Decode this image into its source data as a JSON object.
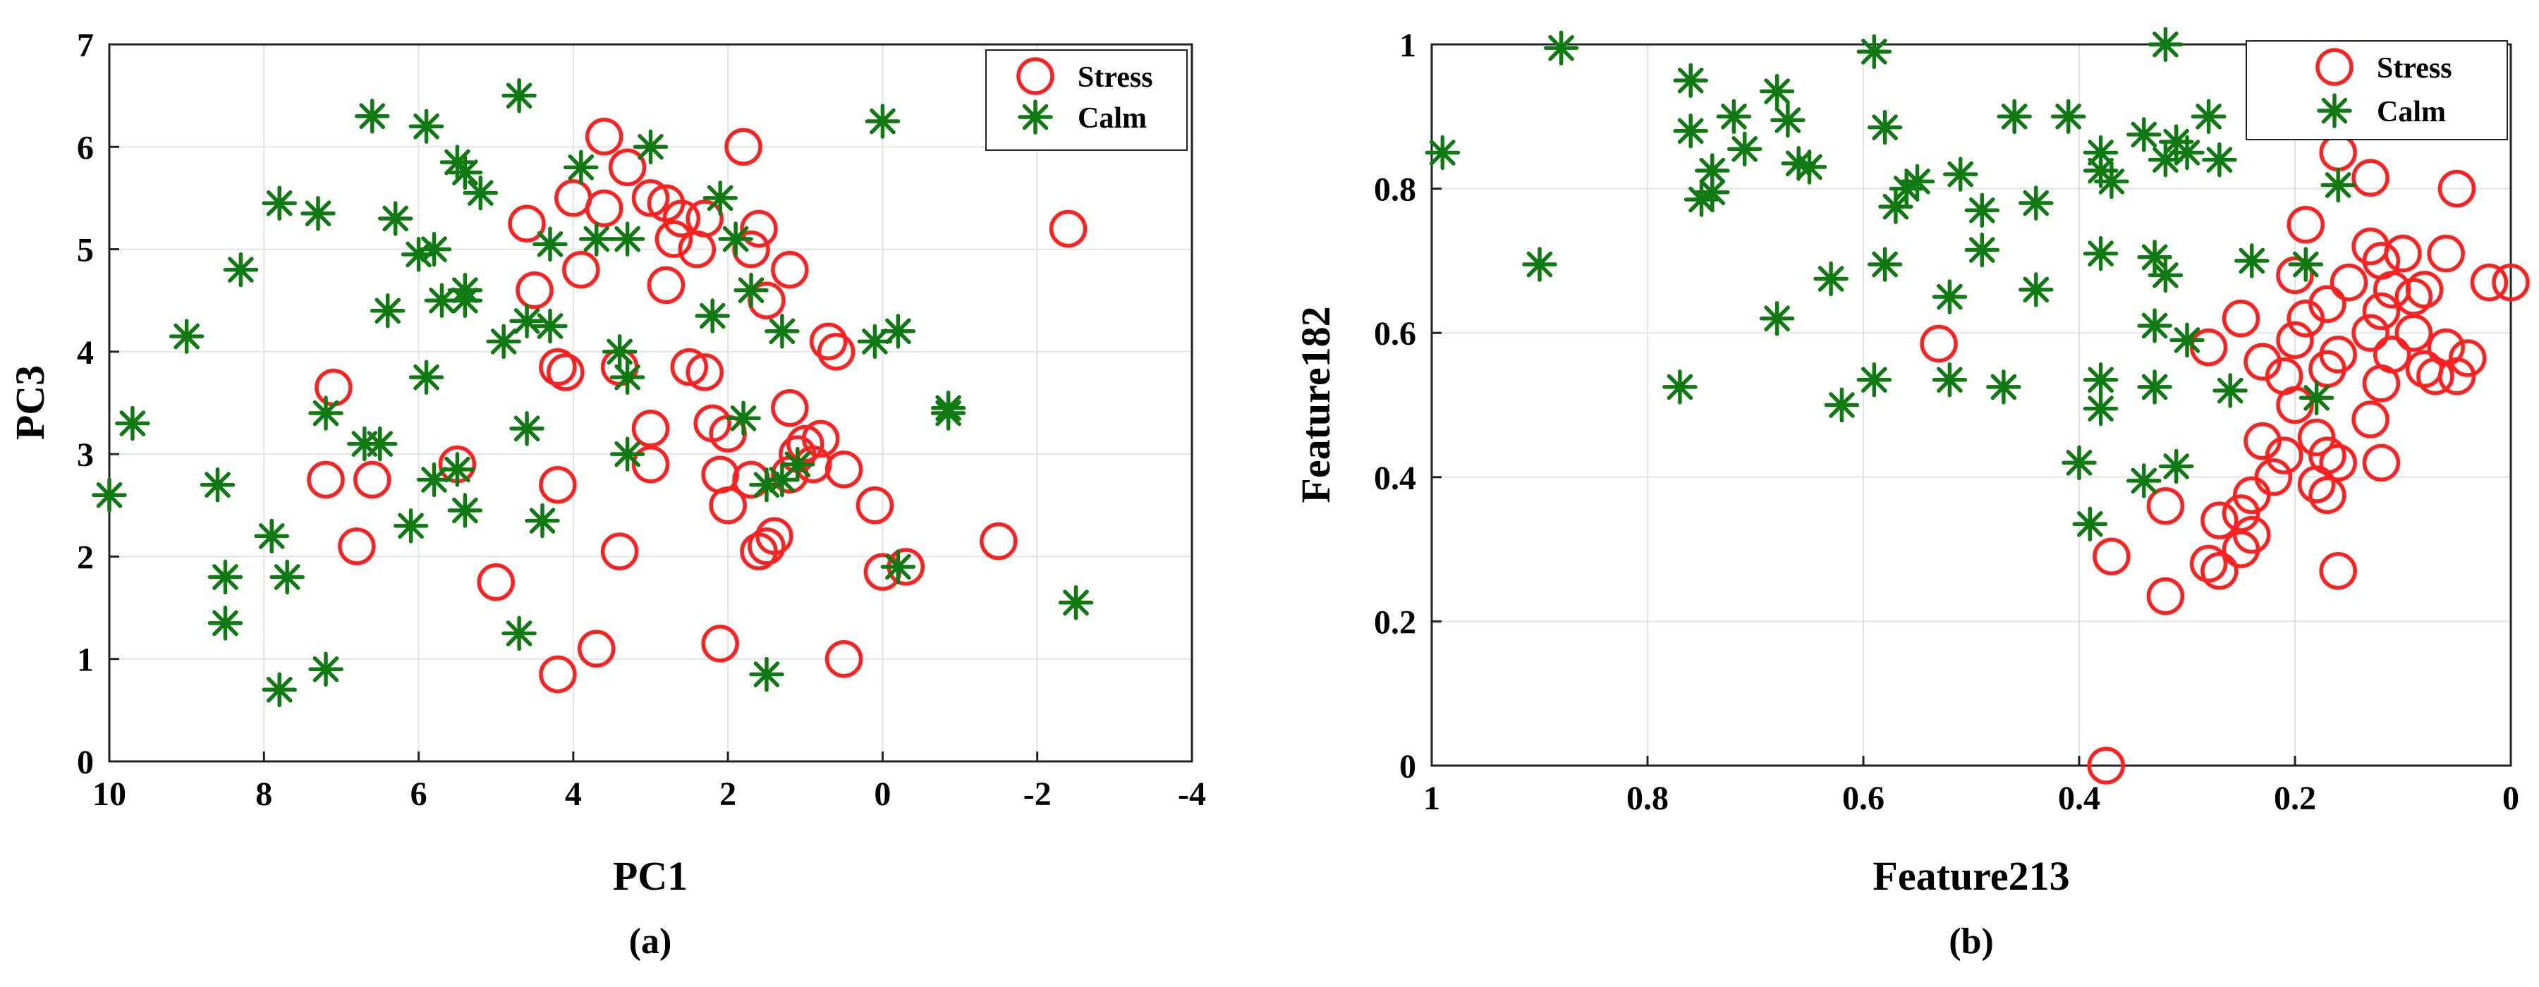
{
  "colors": {
    "stress": "#ff2020",
    "calm": "#0f7a12"
  },
  "chart_data": [
    {
      "type": "scatter",
      "caption": "(a)",
      "xlabel": "PC1",
      "ylabel": "PC3",
      "xlim": [
        10,
        -4
      ],
      "ylim": [
        0,
        7
      ],
      "xticks": [
        10,
        8,
        6,
        4,
        2,
        0,
        -2,
        -4
      ],
      "yticks": [
        0,
        1,
        2,
        3,
        4,
        5,
        6,
        7
      ],
      "grid": true,
      "legend": {
        "position": "top-right",
        "entries": [
          "Stress",
          "Calm"
        ]
      },
      "series": [
        {
          "name": "Stress",
          "marker": "circle",
          "points": [
            [
              3.6,
              6.1
            ],
            [
              1.8,
              6.0
            ],
            [
              3.3,
              5.8
            ],
            [
              3.0,
              5.5
            ],
            [
              2.8,
              5.45
            ],
            [
              3.6,
              5.4
            ],
            [
              4.0,
              5.5
            ],
            [
              2.6,
              5.3
            ],
            [
              4.6,
              5.25
            ],
            [
              2.3,
              5.3
            ],
            [
              1.6,
              5.2
            ],
            [
              2.4,
              5.0
            ],
            [
              2.7,
              5.1
            ],
            [
              1.7,
              5.0
            ],
            [
              1.2,
              4.8
            ],
            [
              3.9,
              4.8
            ],
            [
              1.5,
              4.5
            ],
            [
              4.5,
              4.6
            ],
            [
              2.8,
              4.65
            ],
            [
              0.7,
              4.1
            ],
            [
              0.6,
              4.0
            ],
            [
              4.2,
              3.85
            ],
            [
              4.1,
              3.8
            ],
            [
              3.4,
              3.85
            ],
            [
              2.5,
              3.85
            ],
            [
              2.3,
              3.8
            ],
            [
              7.1,
              3.65
            ],
            [
              1.2,
              3.45
            ],
            [
              2.2,
              3.3
            ],
            [
              2.0,
              3.2
            ],
            [
              1.0,
              3.1
            ],
            [
              0.8,
              3.15
            ],
            [
              3.0,
              3.25
            ],
            [
              1.1,
              3.0
            ],
            [
              0.9,
              2.9
            ],
            [
              5.5,
              2.9
            ],
            [
              3.0,
              2.9
            ],
            [
              0.5,
              2.85
            ],
            [
              2.1,
              2.8
            ],
            [
              1.7,
              2.75
            ],
            [
              4.2,
              2.7
            ],
            [
              7.2,
              2.75
            ],
            [
              6.6,
              2.75
            ],
            [
              1.2,
              2.8
            ],
            [
              2.0,
              2.5
            ],
            [
              0.1,
              2.5
            ],
            [
              1.4,
              2.2
            ],
            [
              1.5,
              2.1
            ],
            [
              1.6,
              2.05
            ],
            [
              6.8,
              2.1
            ],
            [
              3.4,
              2.05
            ],
            [
              -1.5,
              2.15
            ],
            [
              5.0,
              1.75
            ],
            [
              0.0,
              1.85
            ],
            [
              -0.3,
              1.9
            ],
            [
              3.7,
              1.1
            ],
            [
              2.1,
              1.15
            ],
            [
              0.5,
              1.0
            ],
            [
              4.2,
              0.85
            ],
            [
              -2.4,
              5.2
            ]
          ]
        },
        {
          "name": "Calm",
          "marker": "asterisk",
          "points": [
            [
              4.7,
              6.5
            ],
            [
              6.6,
              6.3
            ],
            [
              5.9,
              6.2
            ],
            [
              0.0,
              6.25
            ],
            [
              3.0,
              6.0
            ],
            [
              5.5,
              5.85
            ],
            [
              5.4,
              5.75
            ],
            [
              3.9,
              5.8
            ],
            [
              5.2,
              5.55
            ],
            [
              7.8,
              5.45
            ],
            [
              7.3,
              5.35
            ],
            [
              6.3,
              5.3
            ],
            [
              2.1,
              5.5
            ],
            [
              4.3,
              5.05
            ],
            [
              3.7,
              5.1
            ],
            [
              3.3,
              5.1
            ],
            [
              5.8,
              5.0
            ],
            [
              6.0,
              4.95
            ],
            [
              1.9,
              5.1
            ],
            [
              8.3,
              4.8
            ],
            [
              1.7,
              4.6
            ],
            [
              5.4,
              4.6
            ],
            [
              5.4,
              4.5
            ],
            [
              5.7,
              4.5
            ],
            [
              6.4,
              4.4
            ],
            [
              2.2,
              4.35
            ],
            [
              4.6,
              4.3
            ],
            [
              4.3,
              4.25
            ],
            [
              1.3,
              4.2
            ],
            [
              9.0,
              4.15
            ],
            [
              4.9,
              4.1
            ],
            [
              0.1,
              4.1
            ],
            [
              -0.2,
              4.2
            ],
            [
              3.4,
              4.0
            ],
            [
              3.3,
              3.75
            ],
            [
              5.9,
              3.75
            ],
            [
              -0.85,
              3.45
            ],
            [
              -0.85,
              3.4
            ],
            [
              9.7,
              3.3
            ],
            [
              1.8,
              3.35
            ],
            [
              7.2,
              3.4
            ],
            [
              6.7,
              3.1
            ],
            [
              6.5,
              3.1
            ],
            [
              4.6,
              3.25
            ],
            [
              3.3,
              3.0
            ],
            [
              5.8,
              2.75
            ],
            [
              5.5,
              2.85
            ],
            [
              1.5,
              2.7
            ],
            [
              8.6,
              2.7
            ],
            [
              10.0,
              2.6
            ],
            [
              1.1,
              2.9
            ],
            [
              1.3,
              2.75
            ],
            [
              5.4,
              2.45
            ],
            [
              4.4,
              2.35
            ],
            [
              6.1,
              2.3
            ],
            [
              7.9,
              2.2
            ],
            [
              8.5,
              1.8
            ],
            [
              7.7,
              1.8
            ],
            [
              -0.2,
              1.9
            ],
            [
              8.5,
              1.35
            ],
            [
              4.7,
              1.25
            ],
            [
              7.2,
              0.9
            ],
            [
              1.5,
              0.85
            ],
            [
              7.8,
              0.7
            ],
            [
              -2.5,
              1.55
            ]
          ]
        }
      ]
    },
    {
      "type": "scatter",
      "caption": "(b)",
      "xlabel": "Feature213",
      "ylabel": "Feature182",
      "xlim": [
        1,
        0
      ],
      "ylim": [
        0,
        1
      ],
      "xticks": [
        1,
        0.8,
        0.6,
        0.4,
        0.2,
        0
      ],
      "yticks": [
        0,
        0.2,
        0.4,
        0.6,
        0.8,
        1
      ],
      "grid": true,
      "legend": {
        "position": "top-right",
        "entries": [
          "Stress",
          "Calm"
        ]
      },
      "series": [
        {
          "name": "Stress",
          "marker": "circle",
          "points": [
            [
              0.16,
              0.85
            ],
            [
              0.13,
              0.815
            ],
            [
              0.05,
              0.8
            ],
            [
              0.19,
              0.75
            ],
            [
              0.13,
              0.72
            ],
            [
              0.1,
              0.71
            ],
            [
              0.06,
              0.71
            ],
            [
              0.12,
              0.7
            ],
            [
              0.2,
              0.68
            ],
            [
              0.15,
              0.67
            ],
            [
              0.02,
              0.67
            ],
            [
              0.0,
              0.67
            ],
            [
              0.11,
              0.66
            ],
            [
              0.08,
              0.66
            ],
            [
              0.09,
              0.65
            ],
            [
              0.17,
              0.64
            ],
            [
              0.12,
              0.63
            ],
            [
              0.19,
              0.62
            ],
            [
              0.25,
              0.62
            ],
            [
              0.13,
              0.6
            ],
            [
              0.2,
              0.59
            ],
            [
              0.09,
              0.6
            ],
            [
              0.06,
              0.58
            ],
            [
              0.28,
              0.58
            ],
            [
              0.53,
              0.585
            ],
            [
              0.11,
              0.57
            ],
            [
              0.16,
              0.57
            ],
            [
              0.04,
              0.565
            ],
            [
              0.23,
              0.56
            ],
            [
              0.21,
              0.54
            ],
            [
              0.08,
              0.55
            ],
            [
              0.17,
              0.55
            ],
            [
              0.07,
              0.54
            ],
            [
              0.12,
              0.53
            ],
            [
              0.05,
              0.54
            ],
            [
              0.2,
              0.5
            ],
            [
              0.13,
              0.48
            ],
            [
              0.18,
              0.455
            ],
            [
              0.23,
              0.45
            ],
            [
              0.21,
              0.43
            ],
            [
              0.17,
              0.43
            ],
            [
              0.16,
              0.42
            ],
            [
              0.12,
              0.42
            ],
            [
              0.22,
              0.4
            ],
            [
              0.18,
              0.39
            ],
            [
              0.17,
              0.375
            ],
            [
              0.24,
              0.375
            ],
            [
              0.25,
              0.35
            ],
            [
              0.27,
              0.34
            ],
            [
              0.32,
              0.36
            ],
            [
              0.24,
              0.32
            ],
            [
              0.25,
              0.3
            ],
            [
              0.37,
              0.29
            ],
            [
              0.28,
              0.28
            ],
            [
              0.27,
              0.27
            ],
            [
              0.16,
              0.27
            ],
            [
              0.32,
              0.235
            ],
            [
              0.375,
              0.0
            ]
          ]
        },
        {
          "name": "Calm",
          "marker": "asterisk",
          "points": [
            [
              0.32,
              1.0
            ],
            [
              0.88,
              0.995
            ],
            [
              0.59,
              0.99
            ],
            [
              0.76,
              0.95
            ],
            [
              0.68,
              0.935
            ],
            [
              0.72,
              0.9
            ],
            [
              0.28,
              0.9
            ],
            [
              0.46,
              0.9
            ],
            [
              0.41,
              0.9
            ],
            [
              0.58,
              0.885
            ],
            [
              0.67,
              0.895
            ],
            [
              0.76,
              0.88
            ],
            [
              0.34,
              0.875
            ],
            [
              0.31,
              0.865
            ],
            [
              0.71,
              0.855
            ],
            [
              0.99,
              0.85
            ],
            [
              0.38,
              0.85
            ],
            [
              0.3,
              0.85
            ],
            [
              0.32,
              0.84
            ],
            [
              0.27,
              0.84
            ],
            [
              0.66,
              0.835
            ],
            [
              0.65,
              0.83
            ],
            [
              0.74,
              0.825
            ],
            [
              0.38,
              0.825
            ],
            [
              0.51,
              0.82
            ],
            [
              0.55,
              0.81
            ],
            [
              0.37,
              0.81
            ],
            [
              0.16,
              0.805
            ],
            [
              0.56,
              0.8
            ],
            [
              0.74,
              0.795
            ],
            [
              0.75,
              0.785
            ],
            [
              0.44,
              0.78
            ],
            [
              0.57,
              0.775
            ],
            [
              0.49,
              0.77
            ],
            [
              0.49,
              0.715
            ],
            [
              0.38,
              0.71
            ],
            [
              0.33,
              0.705
            ],
            [
              0.58,
              0.695
            ],
            [
              0.9,
              0.695
            ],
            [
              0.24,
              0.7
            ],
            [
              0.19,
              0.695
            ],
            [
              0.32,
              0.68
            ],
            [
              0.63,
              0.675
            ],
            [
              0.44,
              0.66
            ],
            [
              0.52,
              0.65
            ],
            [
              0.68,
              0.62
            ],
            [
              0.33,
              0.61
            ],
            [
              0.3,
              0.59
            ],
            [
              0.52,
              0.535
            ],
            [
              0.47,
              0.525
            ],
            [
              0.59,
              0.535
            ],
            [
              0.38,
              0.535
            ],
            [
              0.33,
              0.525
            ],
            [
              0.26,
              0.52
            ],
            [
              0.18,
              0.51
            ],
            [
              0.62,
              0.5
            ],
            [
              0.77,
              0.525
            ],
            [
              0.38,
              0.495
            ],
            [
              0.4,
              0.42
            ],
            [
              0.31,
              0.415
            ],
            [
              0.34,
              0.395
            ],
            [
              0.39,
              0.335
            ]
          ]
        }
      ]
    }
  ]
}
